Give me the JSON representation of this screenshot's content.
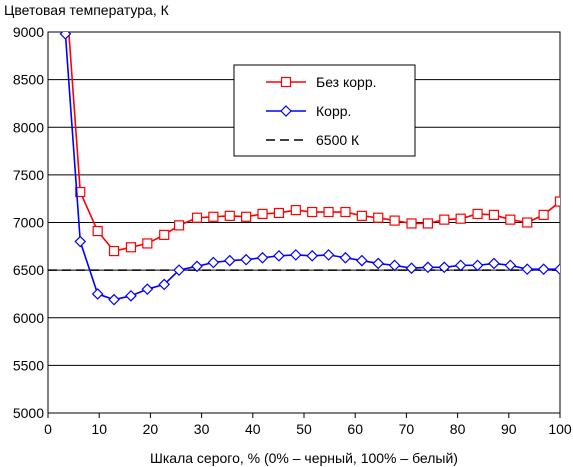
{
  "chart_data": {
    "type": "line",
    "ylabel": "Цветовая температура, К",
    "xlabel": "Шкала серого, % (0% – черный, 100% – белый)",
    "xlim": [
      0,
      100
    ],
    "ylim": [
      5000,
      9000
    ],
    "xticks": [
      0,
      10,
      20,
      30,
      40,
      50,
      60,
      70,
      80,
      90,
      100
    ],
    "yticks": [
      5000,
      5500,
      6000,
      6500,
      7000,
      7500,
      8000,
      8500,
      9000
    ],
    "grid": true,
    "legend_position": "top-right",
    "series": [
      {
        "name": "Без корр.",
        "color": "#ff0000",
        "marker": "square",
        "x": [
          3.8,
          6.3,
          9.7,
          12.9,
          16.2,
          19.4,
          22.7,
          25.6,
          29.1,
          32.3,
          35.5,
          38.7,
          41.9,
          45.1,
          48.4,
          51.6,
          54.8,
          58.1,
          61.3,
          64.5,
          67.7,
          71.0,
          74.2,
          77.4,
          80.6,
          83.9,
          87.1,
          90.3,
          93.6,
          96.8,
          100
        ],
        "y": [
          9200,
          7320,
          6910,
          6700,
          6740,
          6780,
          6870,
          6970,
          7050,
          7060,
          7070,
          7060,
          7090,
          7100,
          7130,
          7110,
          7110,
          7110,
          7070,
          7050,
          7020,
          6990,
          6990,
          7030,
          7040,
          7090,
          7080,
          7030,
          7000,
          7080,
          7220
        ]
      },
      {
        "name": "Корр.",
        "color": "#0000ff",
        "marker": "diamond",
        "x": [
          3.4,
          6.3,
          9.7,
          12.9,
          16.2,
          19.4,
          22.7,
          25.6,
          29.1,
          32.3,
          35.5,
          38.7,
          41.9,
          45.1,
          48.4,
          51.6,
          54.8,
          58.1,
          61.3,
          64.5,
          67.7,
          71.0,
          74.2,
          77.4,
          80.6,
          83.9,
          87.1,
          90.3,
          93.6,
          96.8,
          100
        ],
        "y": [
          8980,
          6800,
          6250,
          6190,
          6230,
          6300,
          6350,
          6500,
          6540,
          6580,
          6600,
          6610,
          6630,
          6650,
          6660,
          6650,
          6660,
          6630,
          6600,
          6570,
          6550,
          6520,
          6530,
          6530,
          6550,
          6550,
          6570,
          6550,
          6510,
          6510,
          6510
        ]
      },
      {
        "name": "6500 К",
        "color": "#000000",
        "style": "dashed",
        "x": [
          0,
          100
        ],
        "y": [
          6500,
          6500
        ]
      }
    ]
  }
}
